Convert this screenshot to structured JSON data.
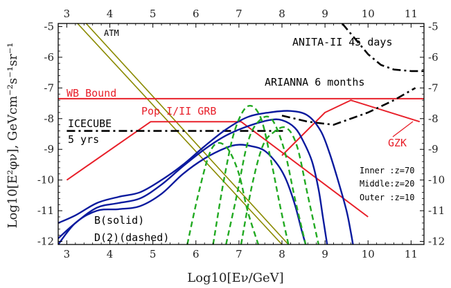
{
  "chart_data": {
    "type": "line",
    "xlabel": "Log10[Eν/GeV]",
    "ylabel": "Log10[E²φν], GeVcm⁻²s⁻¹sr⁻¹",
    "xlim": [
      2.8,
      11.3
    ],
    "ylim": [
      -12.1,
      -4.9
    ],
    "x_ticks": [
      "3",
      "4",
      "5",
      "6",
      "7",
      "8",
      "9",
      "10",
      "11"
    ],
    "y_ticks": [
      "-5",
      "-6",
      "-7",
      "-8",
      "-9",
      "-10",
      "-11",
      "-12"
    ],
    "grid": false,
    "annotations": {
      "atm": "ATM",
      "anita": "ANITA-II 45 days",
      "arianna": "ARIANNA 6 months",
      "wb": "WB Bound",
      "grb": "Pop I/II GRB",
      "icecube_1": "ICECUBE",
      "icecube_2": "5 yrs",
      "gzk": "GZK",
      "inner": "Inner :z=70",
      "middle": "Middle:z=20",
      "outer": "Outer :z=10",
      "b_solid": "B(solid)",
      "d_dashed": "D(2)(dashed)"
    },
    "colors": {
      "atm": "#8a8a00",
      "red": "#e8202a",
      "blue": "#0a1a9e",
      "green": "#22aa22",
      "black": "#000000"
    },
    "series": [
      {
        "name": "ATM",
        "style": "olive",
        "x": [
          3.25,
          8.0
        ],
        "y": [
          -4.9,
          -12.1
        ]
      },
      {
        "name": "ATM",
        "style": "olive",
        "x": [
          3.45,
          8.15
        ],
        "y": [
          -4.9,
          -12.1
        ]
      },
      {
        "name": "WB Bound",
        "style": "red",
        "x": [
          2.8,
          11.3
        ],
        "y": [
          -7.35,
          -7.35
        ]
      },
      {
        "name": "Pop I/II GRB",
        "style": "red",
        "x": [
          3.0,
          4.95,
          7.05,
          10.0
        ],
        "y": [
          -10.0,
          -8.1,
          -8.1,
          -11.2
        ]
      },
      {
        "name": "GZK",
        "style": "red",
        "x": [
          8.0,
          9.0,
          9.6,
          11.2
        ],
        "y": [
          -9.2,
          -7.8,
          -7.4,
          -8.1
        ]
      },
      {
        "name": "ICECUBE 5 yrs",
        "style": "black-dashdot",
        "x": [
          3.0,
          8.05
        ],
        "y": [
          -8.4,
          -8.4
        ]
      },
      {
        "name": "ARIANNA 6 months",
        "style": "black-dashdot",
        "x": [
          8.0,
          8.6,
          9.2,
          10.0,
          10.6,
          11.1
        ],
        "y": [
          -7.9,
          -8.1,
          -8.2,
          -7.8,
          -7.4,
          -7.0
        ]
      },
      {
        "name": "ANITA-II 45 days",
        "style": "black-dashdot",
        "x": [
          9.4,
          9.7,
          10.0,
          10.3,
          10.6,
          11.0,
          11.3
        ],
        "y": [
          -4.9,
          -5.4,
          -5.9,
          -6.25,
          -6.4,
          -6.45,
          -6.45
        ]
      },
      {
        "name": "B Inner z=70",
        "style": "blue",
        "x": [
          2.8,
          3.2,
          3.7,
          4.2,
          4.7,
          5.2,
          5.7,
          6.2,
          6.7,
          7.2,
          7.7,
          8.2,
          8.6,
          8.9,
          9.1,
          9.3,
          9.5,
          9.6,
          9.65
        ],
        "y": [
          -11.4,
          -11.15,
          -10.75,
          -10.55,
          -10.4,
          -10.0,
          -9.5,
          -8.9,
          -8.35,
          -7.95,
          -7.8,
          -7.75,
          -7.9,
          -8.4,
          -9.1,
          -10.0,
          -11.0,
          -11.7,
          -12.1
        ]
      },
      {
        "name": "B Middle z=20",
        "style": "blue",
        "x": [
          2.8,
          3.2,
          3.7,
          4.2,
          4.7,
          5.2,
          5.7,
          6.2,
          6.7,
          7.2,
          7.7,
          8.0,
          8.3,
          8.5,
          8.7,
          8.85,
          8.95,
          9.05
        ],
        "y": [
          -11.9,
          -11.4,
          -10.9,
          -10.75,
          -10.6,
          -10.15,
          -9.55,
          -9.0,
          -8.55,
          -8.25,
          -8.05,
          -8.05,
          -8.3,
          -8.75,
          -9.4,
          -10.3,
          -11.2,
          -12.1
        ]
      },
      {
        "name": "B Outer z=10",
        "style": "blue",
        "x": [
          2.8,
          3.2,
          3.7,
          4.2,
          4.7,
          5.2,
          5.7,
          6.2,
          6.7,
          7.0,
          7.3,
          7.6,
          7.9,
          8.1,
          8.3,
          8.45,
          8.55
        ],
        "y": [
          -12.1,
          -11.4,
          -11.0,
          -10.95,
          -10.85,
          -10.45,
          -9.8,
          -9.3,
          -8.95,
          -8.85,
          -8.9,
          -9.05,
          -9.5,
          -10.0,
          -10.8,
          -11.6,
          -12.1
        ]
      },
      {
        "name": "D(2) 1",
        "style": "green-dashed",
        "x": [
          5.8,
          6.05,
          6.3,
          6.5,
          6.75,
          7.0,
          7.2,
          7.45
        ],
        "y": [
          -12.1,
          -10.5,
          -9.2,
          -8.8,
          -9.0,
          -9.8,
          -11.0,
          -12.1
        ]
      },
      {
        "name": "D(2) 2",
        "style": "green-dashed",
        "x": [
          6.4,
          6.65,
          6.9,
          7.2,
          7.5,
          7.75,
          7.95,
          8.15
        ],
        "y": [
          -12.1,
          -10.0,
          -8.4,
          -7.6,
          -7.95,
          -9.4,
          -10.8,
          -12.1
        ]
      },
      {
        "name": "D(2) 3",
        "style": "green-dashed",
        "x": [
          6.7,
          6.95,
          7.2,
          7.45,
          7.75,
          8.05,
          8.3,
          8.55
        ],
        "y": [
          -12.1,
          -10.5,
          -8.8,
          -8.1,
          -8.0,
          -9.0,
          -10.6,
          -12.1
        ]
      },
      {
        "name": "D(2) 4",
        "style": "green-dashed",
        "x": [
          7.05,
          7.3,
          7.55,
          7.8,
          8.1,
          8.35,
          8.6,
          8.85
        ],
        "y": [
          -12.1,
          -10.2,
          -8.9,
          -8.45,
          -8.3,
          -8.9,
          -10.5,
          -12.1
        ]
      }
    ]
  }
}
